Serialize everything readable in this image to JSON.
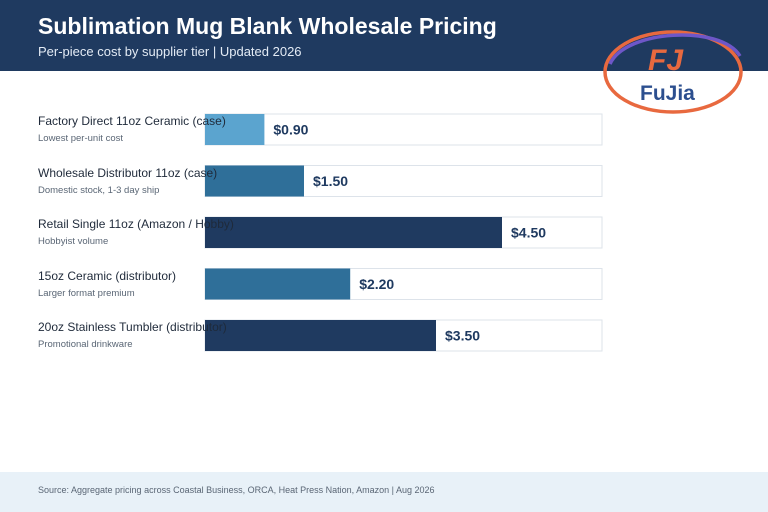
{
  "header": {
    "title": "Sublimation Mug Blank Wholesale Pricing",
    "subtitle": "Per-piece cost by supplier tier | Updated 2026"
  },
  "logo": {
    "text": "FuJia",
    "mark": "FJ"
  },
  "colors": {
    "header_bg": "#1f3a60",
    "footer_bg": "#e8f1f8",
    "light_blue": "#5ba4cf",
    "mid_blue": "#2f6f99",
    "navy": "#1f3a60"
  },
  "chart_data": {
    "type": "bar",
    "orientation": "horizontal",
    "categories": [
      "Factory Direct 11oz Ceramic (case)",
      "Wholesale Distributor 11oz (case)",
      "Retail Single 11oz (Amazon / Hobby)",
      "15oz Ceramic (distributor)",
      "20oz Stainless Tumbler (distributor)"
    ],
    "subtitles": [
      "Lowest per-unit cost",
      "Domestic stock, 1-3 day ship",
      "Hobbyist volume",
      "Larger format premium",
      "Promotional drinkware"
    ],
    "values": [
      0.9,
      1.5,
      4.5,
      2.2,
      3.5
    ],
    "value_labels": [
      "$0.90",
      "$1.50",
      "$4.50",
      "$2.20",
      "$3.50"
    ],
    "bar_colors": [
      "#5ba4cf",
      "#2f6f99",
      "#1f3a60",
      "#2f6f99",
      "#1f3a60"
    ],
    "xlim": [
      0,
      6
    ],
    "grid": false,
    "legend": "none"
  },
  "footer": {
    "source": "Source: Aggregate pricing across Coastal Business, ORCA, Heat Press Nation, Amazon | Aug 2026"
  }
}
